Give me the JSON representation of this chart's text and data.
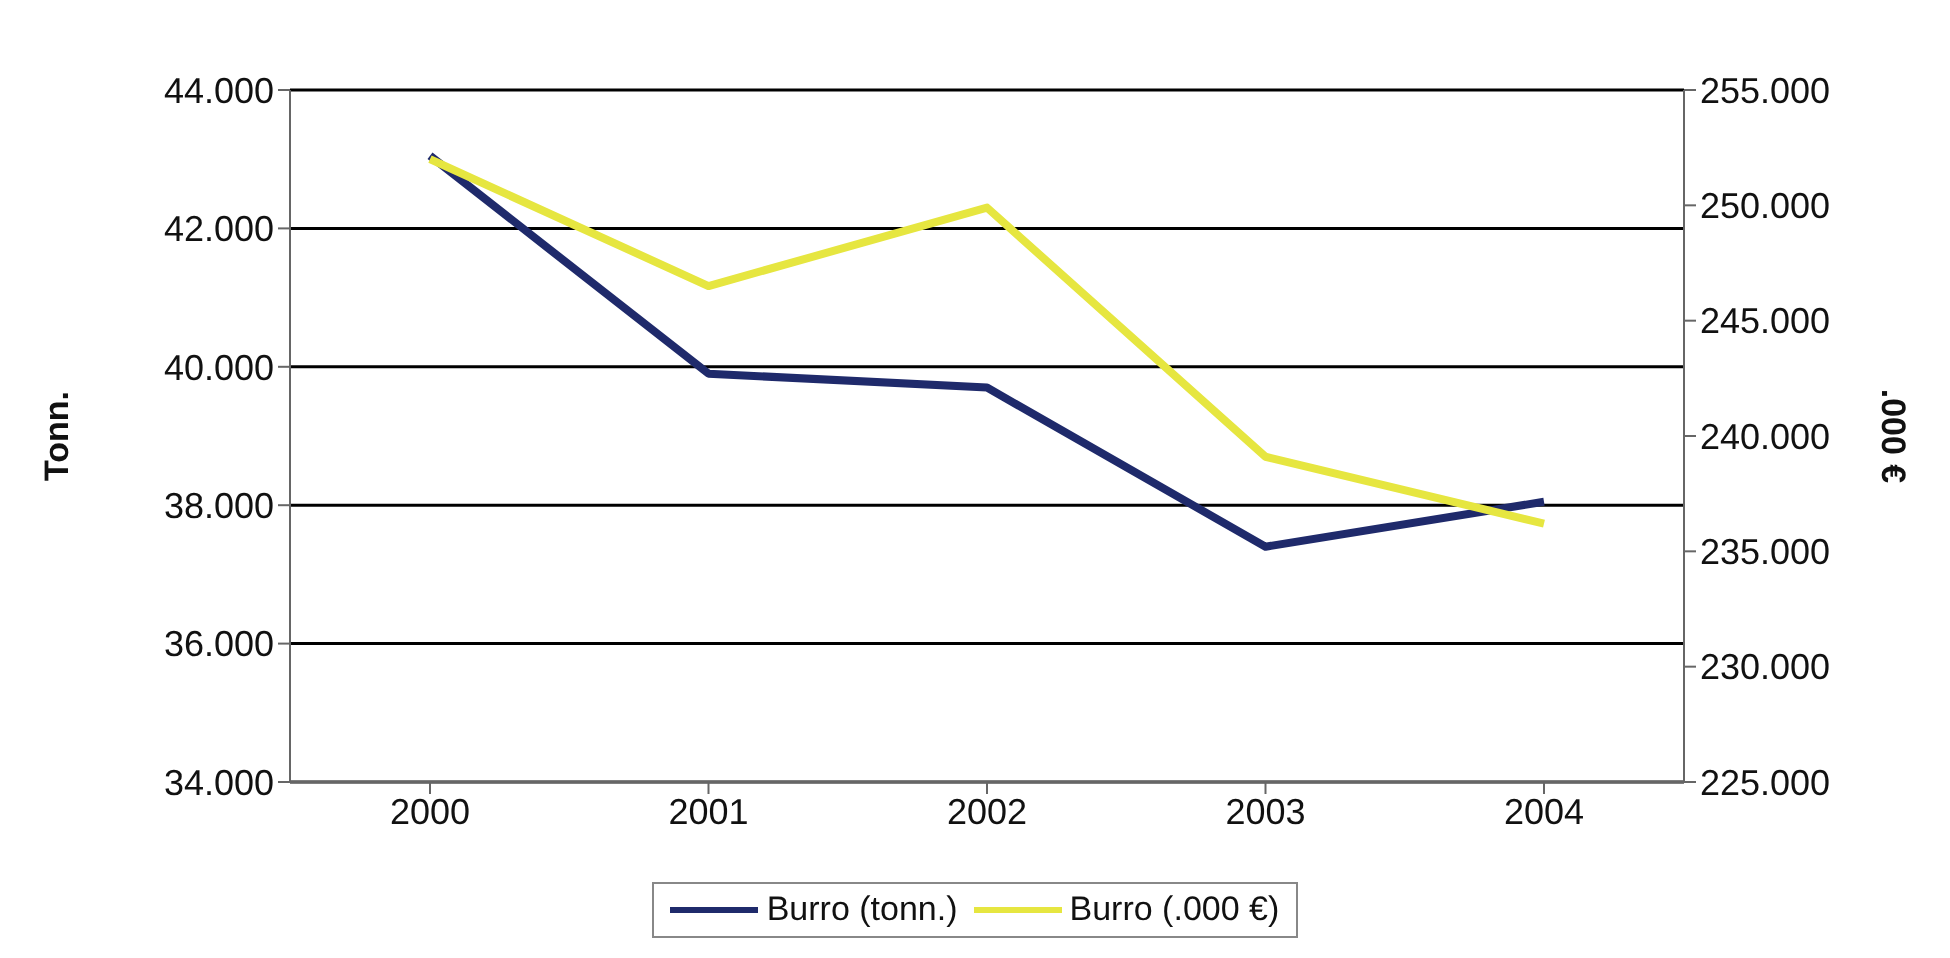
{
  "chart_data": {
    "type": "line",
    "categories": [
      "2000",
      "2001",
      "2002",
      "2003",
      "2004"
    ],
    "series": [
      {
        "name": "Burro (tonn.)",
        "color": "#1f2a6b",
        "values": [
          43050,
          39900,
          39700,
          37400,
          38050
        ]
      },
      {
        "name": "Burro (.000 €)",
        "color": "#e6e640",
        "axis": "y2",
        "values": [
          252000,
          246500,
          249900,
          239100,
          236200
        ]
      }
    ],
    "ylabel": "Tonn.",
    "y2label": ".000 €",
    "ylim": [
      34000,
      44000
    ],
    "yticks": [
      {
        "value": 34000,
        "label": "34.000"
      },
      {
        "value": 36000,
        "label": "36.000"
      },
      {
        "value": 38000,
        "label": "38.000"
      },
      {
        "value": 40000,
        "label": "40.000"
      },
      {
        "value": 42000,
        "label": "42.000"
      },
      {
        "value": 44000,
        "label": "44.000"
      }
    ],
    "y2lim": [
      225000,
      255000
    ],
    "y2ticks": [
      {
        "value": 225000,
        "label": "225.000"
      },
      {
        "value": 230000,
        "label": "230.000"
      },
      {
        "value": 235000,
        "label": "235.000"
      },
      {
        "value": 240000,
        "label": "240.000"
      },
      {
        "value": 245000,
        "label": "245.000"
      },
      {
        "value": 250000,
        "label": "250.000"
      },
      {
        "value": 255000,
        "label": "255.000"
      }
    ],
    "grid": "y",
    "legend": "bottom",
    "marker": "none",
    "line_style": "solid"
  }
}
